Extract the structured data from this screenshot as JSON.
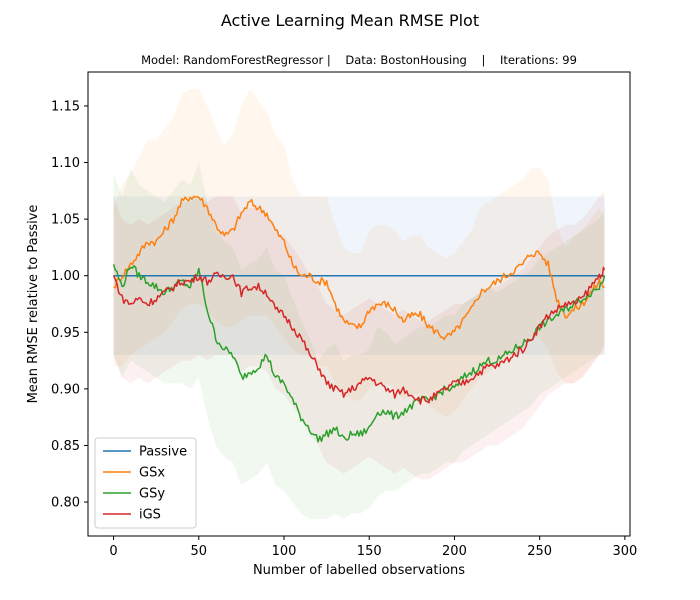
{
  "chart_data": {
    "type": "line",
    "title": "Active Learning Mean RMSE Plot",
    "subtitle": "Model: RandomForestRegressor |    Data: BostonHousing    |    Iterations: 99",
    "xlabel": "Number of labelled observations",
    "ylabel": "Mean RMSE relative to Passive",
    "xlim": [
      -15,
      303
    ],
    "ylim": [
      0.77,
      1.18
    ],
    "xticks": [
      0,
      50,
      100,
      150,
      200,
      250,
      300
    ],
    "yticks": [
      0.8,
      0.85,
      0.9,
      0.95,
      1.0,
      1.05,
      1.1,
      1.15
    ],
    "x_points": [
      0,
      20,
      40,
      60,
      80,
      100,
      120,
      140,
      160,
      180,
      200,
      220,
      240,
      260,
      280,
      288
    ],
    "grid": false,
    "legend_position": "lower-left",
    "series": [
      {
        "name": "Passive",
        "color": "#1f77b4",
        "x": [
          0,
          288
        ],
        "y": [
          1.0,
          1.0
        ],
        "band_lower": [
          0.93,
          0.93
        ],
        "band_upper": [
          1.07,
          1.07
        ]
      },
      {
        "name": "GSx",
        "color": "#ff7f0e",
        "x": [
          0,
          5,
          10,
          15,
          20,
          25,
          30,
          35,
          40,
          45,
          50,
          55,
          60,
          65,
          70,
          75,
          80,
          85,
          90,
          95,
          100,
          105,
          110,
          115,
          120,
          125,
          130,
          135,
          140,
          145,
          150,
          155,
          160,
          165,
          170,
          175,
          180,
          185,
          190,
          195,
          200,
          205,
          210,
          215,
          220,
          225,
          230,
          235,
          240,
          245,
          250,
          255,
          260,
          265,
          270,
          275,
          280,
          285,
          288
        ],
        "y": [
          0.99,
          1.0,
          1.01,
          1.02,
          1.03,
          1.03,
          1.04,
          1.05,
          1.065,
          1.07,
          1.07,
          1.06,
          1.045,
          1.035,
          1.04,
          1.055,
          1.065,
          1.06,
          1.055,
          1.04,
          1.03,
          1.01,
          1.0,
          1.0,
          0.995,
          0.995,
          0.975,
          0.96,
          0.955,
          0.955,
          0.97,
          0.975,
          0.975,
          0.97,
          0.96,
          0.965,
          0.965,
          0.955,
          0.95,
          0.945,
          0.95,
          0.96,
          0.97,
          0.985,
          0.99,
          0.995,
          1.0,
          1.005,
          1.01,
          1.02,
          1.02,
          1.01,
          0.98,
          0.965,
          0.97,
          0.975,
          0.985,
          0.995,
          0.99
        ],
        "band_lower": [
          0.92,
          0.92,
          0.93,
          0.935,
          0.94,
          0.945,
          0.95,
          0.96,
          0.97,
          0.975,
          0.975,
          0.97,
          0.96,
          0.955,
          0.955,
          0.96,
          0.965,
          0.965,
          0.965,
          0.955,
          0.945,
          0.935,
          0.93,
          0.93,
          0.92,
          0.92,
          0.905,
          0.895,
          0.89,
          0.89,
          0.9,
          0.905,
          0.905,
          0.9,
          0.89,
          0.895,
          0.895,
          0.885,
          0.88,
          0.875,
          0.88,
          0.89,
          0.9,
          0.91,
          0.915,
          0.92,
          0.925,
          0.93,
          0.935,
          0.945,
          0.945,
          0.935,
          0.915,
          0.905,
          0.905,
          0.91,
          0.92,
          0.93,
          0.93
        ],
        "band_upper": [
          1.06,
          1.08,
          1.09,
          1.105,
          1.12,
          1.12,
          1.13,
          1.14,
          1.16,
          1.165,
          1.165,
          1.15,
          1.13,
          1.115,
          1.125,
          1.15,
          1.165,
          1.155,
          1.145,
          1.125,
          1.115,
          1.085,
          1.07,
          1.07,
          1.07,
          1.07,
          1.045,
          1.025,
          1.02,
          1.02,
          1.04,
          1.045,
          1.045,
          1.04,
          1.03,
          1.035,
          1.035,
          1.025,
          1.02,
          1.015,
          1.02,
          1.03,
          1.04,
          1.06,
          1.065,
          1.07,
          1.075,
          1.08,
          1.085,
          1.095,
          1.095,
          1.085,
          1.045,
          1.025,
          1.035,
          1.04,
          1.05,
          1.06,
          1.05
        ]
      },
      {
        "name": "GSy",
        "color": "#2ca02c",
        "x": [
          0,
          5,
          10,
          15,
          20,
          25,
          30,
          35,
          40,
          45,
          50,
          55,
          60,
          65,
          70,
          75,
          80,
          85,
          90,
          95,
          100,
          105,
          110,
          115,
          120,
          125,
          130,
          135,
          140,
          145,
          150,
          155,
          160,
          165,
          170,
          175,
          180,
          185,
          190,
          195,
          200,
          205,
          210,
          215,
          220,
          225,
          230,
          235,
          240,
          245,
          250,
          255,
          260,
          265,
          270,
          275,
          280,
          285,
          288
        ],
        "y": [
          1.01,
          0.99,
          1.01,
          1.0,
          0.995,
          0.99,
          0.985,
          0.99,
          0.995,
          0.99,
          1.005,
          0.97,
          0.945,
          0.935,
          0.93,
          0.91,
          0.915,
          0.92,
          0.93,
          0.91,
          0.905,
          0.89,
          0.875,
          0.865,
          0.855,
          0.86,
          0.865,
          0.855,
          0.86,
          0.86,
          0.865,
          0.88,
          0.88,
          0.875,
          0.88,
          0.885,
          0.89,
          0.89,
          0.895,
          0.9,
          0.9,
          0.91,
          0.915,
          0.92,
          0.925,
          0.925,
          0.93,
          0.935,
          0.94,
          0.945,
          0.955,
          0.96,
          0.965,
          0.97,
          0.975,
          0.98,
          0.985,
          0.99,
          1.0
        ],
        "band_lower": [
          0.93,
          0.91,
          0.925,
          0.92,
          0.915,
          0.91,
          0.905,
          0.905,
          0.905,
          0.9,
          0.91,
          0.875,
          0.85,
          0.84,
          0.835,
          0.815,
          0.82,
          0.825,
          0.835,
          0.815,
          0.81,
          0.8,
          0.79,
          0.785,
          0.785,
          0.785,
          0.79,
          0.785,
          0.79,
          0.79,
          0.795,
          0.805,
          0.81,
          0.81,
          0.815,
          0.82,
          0.825,
          0.825,
          0.83,
          0.835,
          0.835,
          0.845,
          0.85,
          0.855,
          0.86,
          0.865,
          0.87,
          0.875,
          0.88,
          0.885,
          0.895,
          0.9,
          0.905,
          0.91,
          0.915,
          0.92,
          0.925,
          0.93,
          0.94
        ],
        "band_upper": [
          1.09,
          1.07,
          1.095,
          1.08,
          1.075,
          1.07,
          1.065,
          1.075,
          1.085,
          1.08,
          1.1,
          1.065,
          1.04,
          1.03,
          1.025,
          1.005,
          1.01,
          1.015,
          1.025,
          1.005,
          1.0,
          0.98,
          0.96,
          0.945,
          0.925,
          0.935,
          0.94,
          0.925,
          0.93,
          0.93,
          0.935,
          0.955,
          0.95,
          0.94,
          0.945,
          0.95,
          0.955,
          0.955,
          0.96,
          0.965,
          0.965,
          0.975,
          0.98,
          0.985,
          0.99,
          0.985,
          0.99,
          0.995,
          1.0,
          1.005,
          1.015,
          1.02,
          1.025,
          1.03,
          1.035,
          1.04,
          1.045,
          1.05,
          1.06
        ]
      },
      {
        "name": "iGS",
        "color": "#d62728",
        "x": [
          0,
          5,
          10,
          15,
          20,
          25,
          30,
          35,
          40,
          45,
          50,
          55,
          60,
          65,
          70,
          75,
          80,
          85,
          90,
          95,
          100,
          105,
          110,
          115,
          120,
          125,
          130,
          135,
          140,
          145,
          150,
          155,
          160,
          165,
          170,
          175,
          180,
          185,
          190,
          195,
          200,
          205,
          210,
          215,
          220,
          225,
          230,
          235,
          240,
          245,
          250,
          255,
          260,
          265,
          270,
          275,
          280,
          285,
          288
        ],
        "y": [
          1.0,
          0.98,
          0.975,
          0.98,
          0.975,
          0.98,
          0.985,
          0.99,
          0.995,
          0.995,
          1.0,
          0.995,
          1.0,
          1.0,
          1.0,
          0.985,
          0.99,
          0.99,
          0.985,
          0.97,
          0.965,
          0.955,
          0.945,
          0.93,
          0.92,
          0.905,
          0.9,
          0.895,
          0.9,
          0.905,
          0.91,
          0.905,
          0.9,
          0.895,
          0.9,
          0.895,
          0.89,
          0.89,
          0.895,
          0.9,
          0.905,
          0.905,
          0.91,
          0.915,
          0.92,
          0.92,
          0.925,
          0.93,
          0.935,
          0.945,
          0.955,
          0.965,
          0.97,
          0.975,
          0.975,
          0.98,
          0.99,
          1.0,
          1.005
        ],
        "band_lower": [
          0.93,
          0.91,
          0.905,
          0.91,
          0.905,
          0.91,
          0.915,
          0.92,
          0.925,
          0.925,
          0.93,
          0.925,
          0.93,
          0.93,
          0.93,
          0.915,
          0.92,
          0.92,
          0.915,
          0.9,
          0.895,
          0.885,
          0.875,
          0.86,
          0.85,
          0.835,
          0.83,
          0.825,
          0.83,
          0.835,
          0.84,
          0.835,
          0.83,
          0.825,
          0.83,
          0.825,
          0.82,
          0.82,
          0.825,
          0.83,
          0.835,
          0.835,
          0.84,
          0.845,
          0.85,
          0.85,
          0.855,
          0.86,
          0.865,
          0.875,
          0.885,
          0.895,
          0.9,
          0.905,
          0.905,
          0.91,
          0.92,
          0.93,
          0.935
        ],
        "band_upper": [
          1.07,
          1.05,
          1.045,
          1.05,
          1.045,
          1.05,
          1.055,
          1.06,
          1.065,
          1.065,
          1.07,
          1.065,
          1.07,
          1.07,
          1.07,
          1.055,
          1.06,
          1.06,
          1.055,
          1.04,
          1.035,
          1.025,
          1.015,
          1.0,
          0.99,
          0.975,
          0.97,
          0.965,
          0.97,
          0.975,
          0.98,
          0.975,
          0.97,
          0.965,
          0.97,
          0.965,
          0.96,
          0.96,
          0.965,
          0.97,
          0.975,
          0.975,
          0.98,
          0.985,
          0.99,
          0.99,
          0.995,
          1.0,
          1.005,
          1.015,
          1.025,
          1.035,
          1.04,
          1.045,
          1.045,
          1.05,
          1.06,
          1.07,
          1.075
        ]
      }
    ]
  }
}
